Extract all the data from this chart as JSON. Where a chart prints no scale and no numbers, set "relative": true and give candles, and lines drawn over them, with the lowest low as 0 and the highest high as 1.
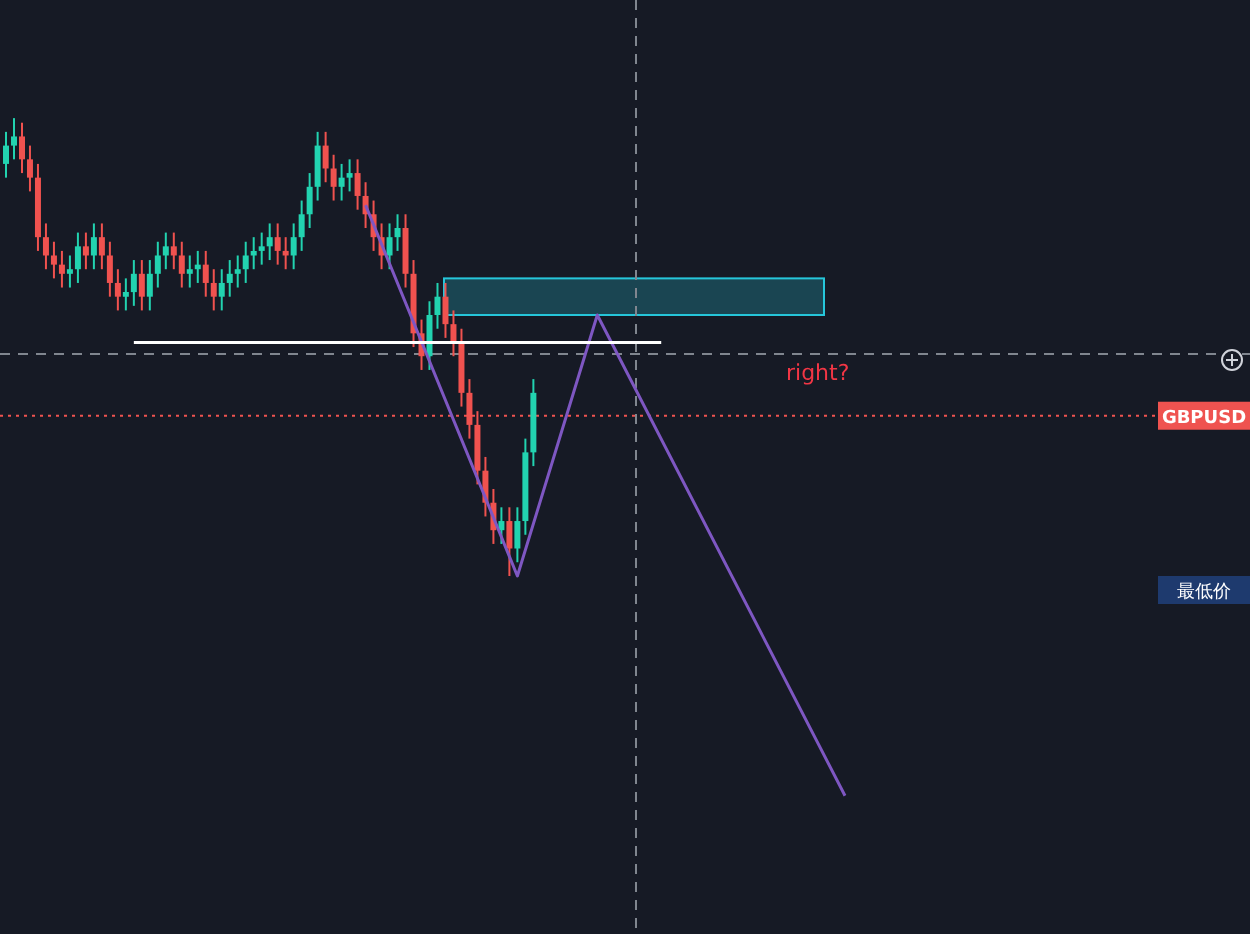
{
  "chart_data": {
    "type": "candlestick",
    "relative": true,
    "grid": false,
    "categories": [
      null,
      null,
      null,
      null,
      null,
      null,
      null,
      null,
      null,
      null,
      null,
      null,
      null,
      null,
      null,
      null,
      null,
      null,
      null,
      null,
      null,
      null,
      null,
      null,
      null,
      null,
      null,
      null,
      null,
      null,
      null,
      null,
      null,
      null,
      null,
      null,
      null,
      null,
      null,
      null,
      null,
      null,
      null,
      null,
      null,
      null,
      null,
      null,
      null,
      null,
      null,
      null,
      null,
      null,
      null,
      null,
      null,
      null,
      null,
      null,
      null,
      null,
      null,
      null,
      null,
      null,
      null,
      null,
      null,
      null,
      null,
      null,
      null,
      null,
      null,
      null,
      null,
      null,
      null,
      null,
      null,
      null,
      null,
      null,
      null,
      null,
      null,
      null,
      null,
      null,
      null,
      null,
      null,
      null,
      null,
      null,
      null,
      null,
      null,
      null,
      null,
      null,
      null,
      null,
      null,
      null
    ],
    "ohlc": [
      [
        0.9,
        0.97,
        0.87,
        0.94
      ],
      [
        0.94,
        1.0,
        0.91,
        0.96
      ],
      [
        0.96,
        0.99,
        0.88,
        0.91
      ],
      [
        0.91,
        0.94,
        0.84,
        0.87
      ],
      [
        0.87,
        0.9,
        0.71,
        0.74
      ],
      [
        0.74,
        0.77,
        0.67,
        0.7
      ],
      [
        0.7,
        0.73,
        0.65,
        0.68
      ],
      [
        0.68,
        0.71,
        0.63,
        0.66
      ],
      [
        0.66,
        0.7,
        0.63,
        0.67
      ],
      [
        0.67,
        0.75,
        0.64,
        0.72
      ],
      [
        0.72,
        0.75,
        0.67,
        0.7
      ],
      [
        0.7,
        0.77,
        0.67,
        0.74
      ],
      [
        0.74,
        0.77,
        0.67,
        0.7
      ],
      [
        0.7,
        0.73,
        0.61,
        0.64
      ],
      [
        0.64,
        0.67,
        0.58,
        0.61
      ],
      [
        0.61,
        0.65,
        0.58,
        0.62
      ],
      [
        0.62,
        0.69,
        0.59,
        0.66
      ],
      [
        0.66,
        0.69,
        0.58,
        0.61
      ],
      [
        0.61,
        0.69,
        0.58,
        0.66
      ],
      [
        0.66,
        0.73,
        0.63,
        0.7
      ],
      [
        0.7,
        0.75,
        0.67,
        0.72
      ],
      [
        0.72,
        0.75,
        0.67,
        0.7
      ],
      [
        0.7,
        0.73,
        0.63,
        0.66
      ],
      [
        0.66,
        0.7,
        0.63,
        0.67
      ],
      [
        0.67,
        0.71,
        0.64,
        0.68
      ],
      [
        0.68,
        0.71,
        0.61,
        0.64
      ],
      [
        0.64,
        0.67,
        0.58,
        0.61
      ],
      [
        0.61,
        0.67,
        0.58,
        0.64
      ],
      [
        0.64,
        0.69,
        0.61,
        0.66
      ],
      [
        0.66,
        0.7,
        0.63,
        0.67
      ],
      [
        0.67,
        0.73,
        0.64,
        0.7
      ],
      [
        0.7,
        0.74,
        0.67,
        0.71
      ],
      [
        0.71,
        0.75,
        0.68,
        0.72
      ],
      [
        0.72,
        0.77,
        0.69,
        0.74
      ],
      [
        0.74,
        0.77,
        0.68,
        0.71
      ],
      [
        0.71,
        0.74,
        0.67,
        0.7
      ],
      [
        0.7,
        0.77,
        0.67,
        0.74
      ],
      [
        0.74,
        0.82,
        0.71,
        0.79
      ],
      [
        0.79,
        0.88,
        0.76,
        0.85
      ],
      [
        0.85,
        0.97,
        0.82,
        0.94
      ],
      [
        0.94,
        0.97,
        0.86,
        0.89
      ],
      [
        0.89,
        0.92,
        0.82,
        0.85
      ],
      [
        0.85,
        0.9,
        0.82,
        0.87
      ],
      [
        0.87,
        0.91,
        0.84,
        0.88
      ],
      [
        0.88,
        0.91,
        0.8,
        0.83
      ],
      [
        0.83,
        0.86,
        0.76,
        0.79
      ],
      [
        0.79,
        0.82,
        0.71,
        0.74
      ],
      [
        0.74,
        0.77,
        0.67,
        0.7
      ],
      [
        0.7,
        0.77,
        0.67,
        0.74
      ],
      [
        0.74,
        0.79,
        0.71,
        0.76
      ],
      [
        0.76,
        0.79,
        0.63,
        0.66
      ],
      [
        0.66,
        0.69,
        0.5,
        0.53
      ],
      [
        0.53,
        0.56,
        0.45,
        0.48
      ],
      [
        0.48,
        0.6,
        0.45,
        0.57
      ],
      [
        0.57,
        0.64,
        0.54,
        0.61
      ],
      [
        0.61,
        0.64,
        0.52,
        0.55
      ],
      [
        0.55,
        0.58,
        0.48,
        0.51
      ],
      [
        0.51,
        0.54,
        0.37,
        0.4
      ],
      [
        0.4,
        0.43,
        0.3,
        0.33
      ],
      [
        0.33,
        0.36,
        0.2,
        0.23
      ],
      [
        0.23,
        0.26,
        0.13,
        0.16
      ],
      [
        0.16,
        0.19,
        0.07,
        0.1
      ],
      [
        0.1,
        0.15,
        0.07,
        0.12
      ],
      [
        0.12,
        0.15,
        0.0,
        0.06
      ],
      [
        0.06,
        0.15,
        0.03,
        0.12
      ],
      [
        0.12,
        0.3,
        0.09,
        0.27
      ],
      [
        0.27,
        0.43,
        0.24,
        0.4
      ],
      null,
      null,
      null,
      null,
      null,
      null,
      null,
      null,
      null,
      null,
      null,
      null,
      null,
      null,
      null,
      null,
      null,
      null,
      null,
      null,
      null,
      null,
      null,
      null,
      null,
      null,
      null,
      null,
      null,
      null,
      null,
      null,
      null,
      null,
      null,
      null,
      null,
      null,
      null
    ],
    "series": [
      {
        "type": "line",
        "color": "#7e57c2",
        "values": [
          null,
          null,
          null,
          null,
          null,
          null,
          null,
          null,
          null,
          null,
          null,
          null,
          null,
          null,
          null,
          null,
          null,
          null,
          null,
          null,
          null,
          null,
          null,
          null,
          null,
          null,
          null,
          null,
          null,
          null,
          null,
          null,
          null,
          null,
          null,
          null,
          null,
          null,
          null,
          null,
          null,
          null,
          null,
          null,
          null,
          0.81,
          null,
          null,
          null,
          null,
          null,
          null,
          null,
          null,
          null,
          null,
          null,
          null,
          null,
          null,
          null,
          null,
          null,
          null,
          0.0,
          null,
          null,
          null,
          null,
          null,
          null,
          null,
          null,
          null,
          0.57,
          null,
          null,
          null,
          null,
          null,
          null,
          null,
          null,
          null,
          null,
          null,
          null,
          null,
          null,
          null,
          null,
          null,
          null,
          null,
          null,
          null,
          null,
          null,
          null,
          null,
          null,
          null,
          null,
          null,
          null,
          -0.48
        ]
      },
      {
        "type": "line",
        "color": "#ffffff",
        "values": [
          null,
          null,
          null,
          null,
          null,
          null,
          null,
          null,
          null,
          null,
          null,
          null,
          null,
          null,
          null,
          null,
          0.51,
          null,
          null,
          null,
          null,
          null,
          null,
          null,
          null,
          null,
          null,
          null,
          null,
          null,
          null,
          null,
          null,
          null,
          null,
          null,
          null,
          null,
          null,
          null,
          null,
          null,
          null,
          null,
          null,
          null,
          null,
          null,
          null,
          null,
          null,
          null,
          null,
          null,
          null,
          null,
          null,
          null,
          null,
          null,
          null,
          null,
          null,
          null,
          null,
          null,
          null,
          null,
          null,
          null,
          null,
          null,
          null,
          null,
          null,
          null,
          null,
          null,
          null,
          null,
          null,
          null,
          0.51,
          null,
          null,
          null,
          null,
          null,
          null,
          null,
          null,
          null,
          null,
          null,
          null,
          null,
          null,
          null,
          null,
          null,
          null,
          null,
          null,
          null,
          null,
          null
        ]
      }
    ],
    "ref_lines": [
      {
        "axis": "y",
        "value": 0.35,
        "label": "GBPUSD",
        "color": "#ef5350",
        "line_style": "dotted"
      },
      {
        "axis": "y",
        "value": 0.485,
        "label": null,
        "color": "#80868f",
        "line_style": "dashed"
      }
    ],
    "bands": [
      {
        "axis": "y",
        "from": 0.57,
        "to": 0.65,
        "label": null,
        "color": "#26c6da"
      }
    ],
    "annotations": [
      "right?",
      "最低价"
    ]
  }
}
